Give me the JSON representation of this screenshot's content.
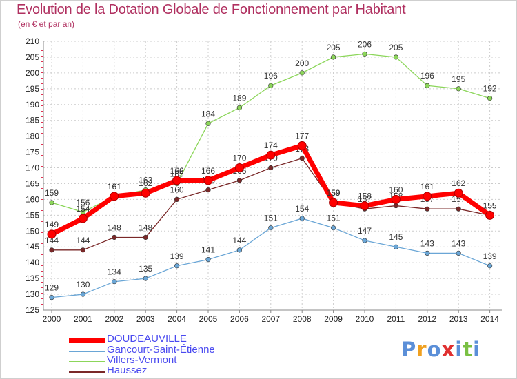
{
  "title": "Evolution de la Dotation Globale de Fonctionnement par Habitant",
  "subtitle": "(en € et par an)",
  "logo_text": "Proxiti",
  "colors": {
    "title": "#b03060",
    "legend_text": "#4a4af0",
    "grid": "#cccccc"
  },
  "chart_data": {
    "type": "line",
    "title": "Evolution de la Dotation Globale de Fonctionnement par Habitant",
    "subtitle": "(en € et par an)",
    "x": [
      2000,
      2001,
      2002,
      2003,
      2004,
      2005,
      2006,
      2007,
      2008,
      2009,
      2010,
      2011,
      2012,
      2013,
      2014
    ],
    "ylim": [
      125,
      210
    ],
    "yticks": [
      125,
      130,
      135,
      140,
      145,
      150,
      155,
      160,
      165,
      170,
      175,
      180,
      185,
      190,
      195,
      200,
      205,
      210
    ],
    "grid": true,
    "legend_position": "bottom-left",
    "series": [
      {
        "name": "DOUDEAUVILLE",
        "color": "#ff0000",
        "emphasis": true,
        "values": [
          149,
          154,
          161,
          162,
          166,
          166,
          170,
          174,
          177,
          159,
          158,
          160,
          161,
          162,
          155
        ]
      },
      {
        "name": "Gancourt-Saint-Étienne",
        "color": "#6aa6d6",
        "emphasis": false,
        "values": [
          129,
          130,
          134,
          135,
          139,
          141,
          144,
          151,
          154,
          151,
          147,
          145,
          143,
          143,
          139
        ]
      },
      {
        "name": "Villers-Vermont",
        "color": "#8cd65a",
        "emphasis": false,
        "values": [
          159,
          156,
          161,
          163,
          165,
          184,
          189,
          196,
          200,
          205,
          206,
          205,
          196,
          195,
          192
        ]
      },
      {
        "name": "Haussez",
        "color": "#7a2828",
        "emphasis": false,
        "values": [
          144,
          144,
          148,
          148,
          160,
          163,
          166,
          170,
          173,
          159,
          157,
          158,
          157,
          157,
          155
        ]
      }
    ]
  }
}
